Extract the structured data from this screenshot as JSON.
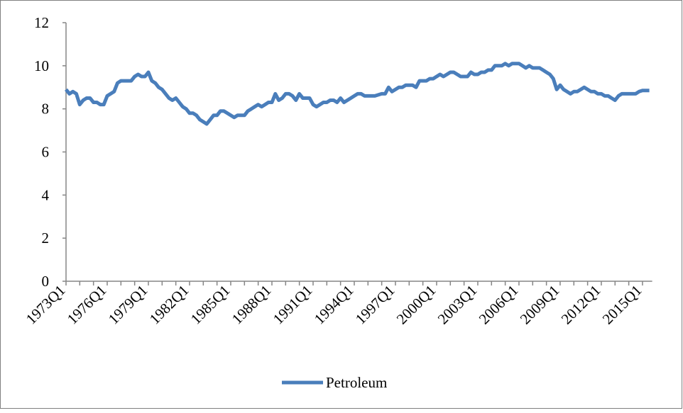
{
  "chart_data": {
    "type": "line",
    "categories": [
      "1973Q1",
      null,
      null,
      null,
      null,
      null,
      null,
      null,
      null,
      null,
      null,
      null,
      "1976Q1",
      null,
      null,
      null,
      null,
      null,
      null,
      null,
      null,
      null,
      null,
      null,
      "1979Q1",
      null,
      null,
      null,
      null,
      null,
      null,
      null,
      null,
      null,
      null,
      null,
      "1982Q1",
      null,
      null,
      null,
      null,
      null,
      null,
      null,
      null,
      null,
      null,
      null,
      "1985Q1",
      null,
      null,
      null,
      null,
      null,
      null,
      null,
      null,
      null,
      null,
      null,
      "1988Q1",
      null,
      null,
      null,
      null,
      null,
      null,
      null,
      null,
      null,
      null,
      null,
      "1991Q1",
      null,
      null,
      null,
      null,
      null,
      null,
      null,
      null,
      null,
      null,
      null,
      "1994Q1",
      null,
      null,
      null,
      null,
      null,
      null,
      null,
      null,
      null,
      null,
      null,
      "1997Q1",
      null,
      null,
      null,
      null,
      null,
      null,
      null,
      null,
      null,
      null,
      null,
      "2000Q1",
      null,
      null,
      null,
      null,
      null,
      null,
      null,
      null,
      null,
      null,
      null,
      "2003Q1",
      null,
      null,
      null,
      null,
      null,
      null,
      null,
      null,
      null,
      null,
      null,
      "2006Q1",
      null,
      null,
      null,
      null,
      null,
      null,
      null,
      null,
      null,
      null,
      null,
      "2009Q1",
      null,
      null,
      null,
      null,
      null,
      null,
      null,
      null,
      null,
      null,
      null,
      "2012Q1",
      null,
      null,
      null,
      null,
      null,
      null,
      null,
      null,
      null,
      null,
      null,
      "2015Q1",
      null,
      null
    ],
    "series": [
      {
        "name": "Petroleum",
        "color": "#4a7ebb",
        "values": [
          8.9,
          8.7,
          8.8,
          8.7,
          8.2,
          8.4,
          8.5,
          8.5,
          8.3,
          8.3,
          8.2,
          8.2,
          8.6,
          8.7,
          8.8,
          9.2,
          9.3,
          9.3,
          9.3,
          9.3,
          9.5,
          9.6,
          9.5,
          9.5,
          9.7,
          9.3,
          9.2,
          9.0,
          8.9,
          8.7,
          8.5,
          8.4,
          8.5,
          8.3,
          8.1,
          8.0,
          7.8,
          7.8,
          7.7,
          7.5,
          7.4,
          7.3,
          7.5,
          7.7,
          7.7,
          7.9,
          7.9,
          7.8,
          7.7,
          7.6,
          7.7,
          7.7,
          7.7,
          7.9,
          8.0,
          8.1,
          8.2,
          8.1,
          8.2,
          8.3,
          8.3,
          8.7,
          8.4,
          8.5,
          8.7,
          8.7,
          8.6,
          8.4,
          8.7,
          8.5,
          8.5,
          8.5,
          8.2,
          8.1,
          8.2,
          8.3,
          8.3,
          8.4,
          8.4,
          8.3,
          8.5,
          8.3,
          8.4,
          8.5,
          8.6,
          8.7,
          8.7,
          8.6,
          8.6,
          8.6,
          8.6,
          8.65,
          8.7,
          8.7,
          9.0,
          8.8,
          8.9,
          9.0,
          9.0,
          9.1,
          9.1,
          9.1,
          9.0,
          9.3,
          9.3,
          9.3,
          9.4,
          9.4,
          9.5,
          9.6,
          9.5,
          9.6,
          9.7,
          9.7,
          9.6,
          9.5,
          9.5,
          9.5,
          9.7,
          9.6,
          9.6,
          9.7,
          9.7,
          9.8,
          9.8,
          10.0,
          10.0,
          10.0,
          10.1,
          10.0,
          10.1,
          10.1,
          10.1,
          10.0,
          9.9,
          10.0,
          9.9,
          9.9,
          9.9,
          9.8,
          9.7,
          9.6,
          9.4,
          8.9,
          9.1,
          8.9,
          8.8,
          8.7,
          8.8,
          8.8,
          8.9,
          9.0,
          8.9,
          8.8,
          8.8,
          8.7,
          8.7,
          8.6,
          8.6,
          8.5,
          8.4,
          8.6,
          8.7,
          8.7,
          8.7,
          8.7,
          8.7,
          8.8,
          8.85,
          8.85,
          8.85
        ]
      }
    ],
    "ylim": [
      0,
      12
    ],
    "yticks": [
      0,
      2,
      4,
      6,
      8,
      10,
      12
    ],
    "grid": false,
    "legend": "bottom"
  }
}
